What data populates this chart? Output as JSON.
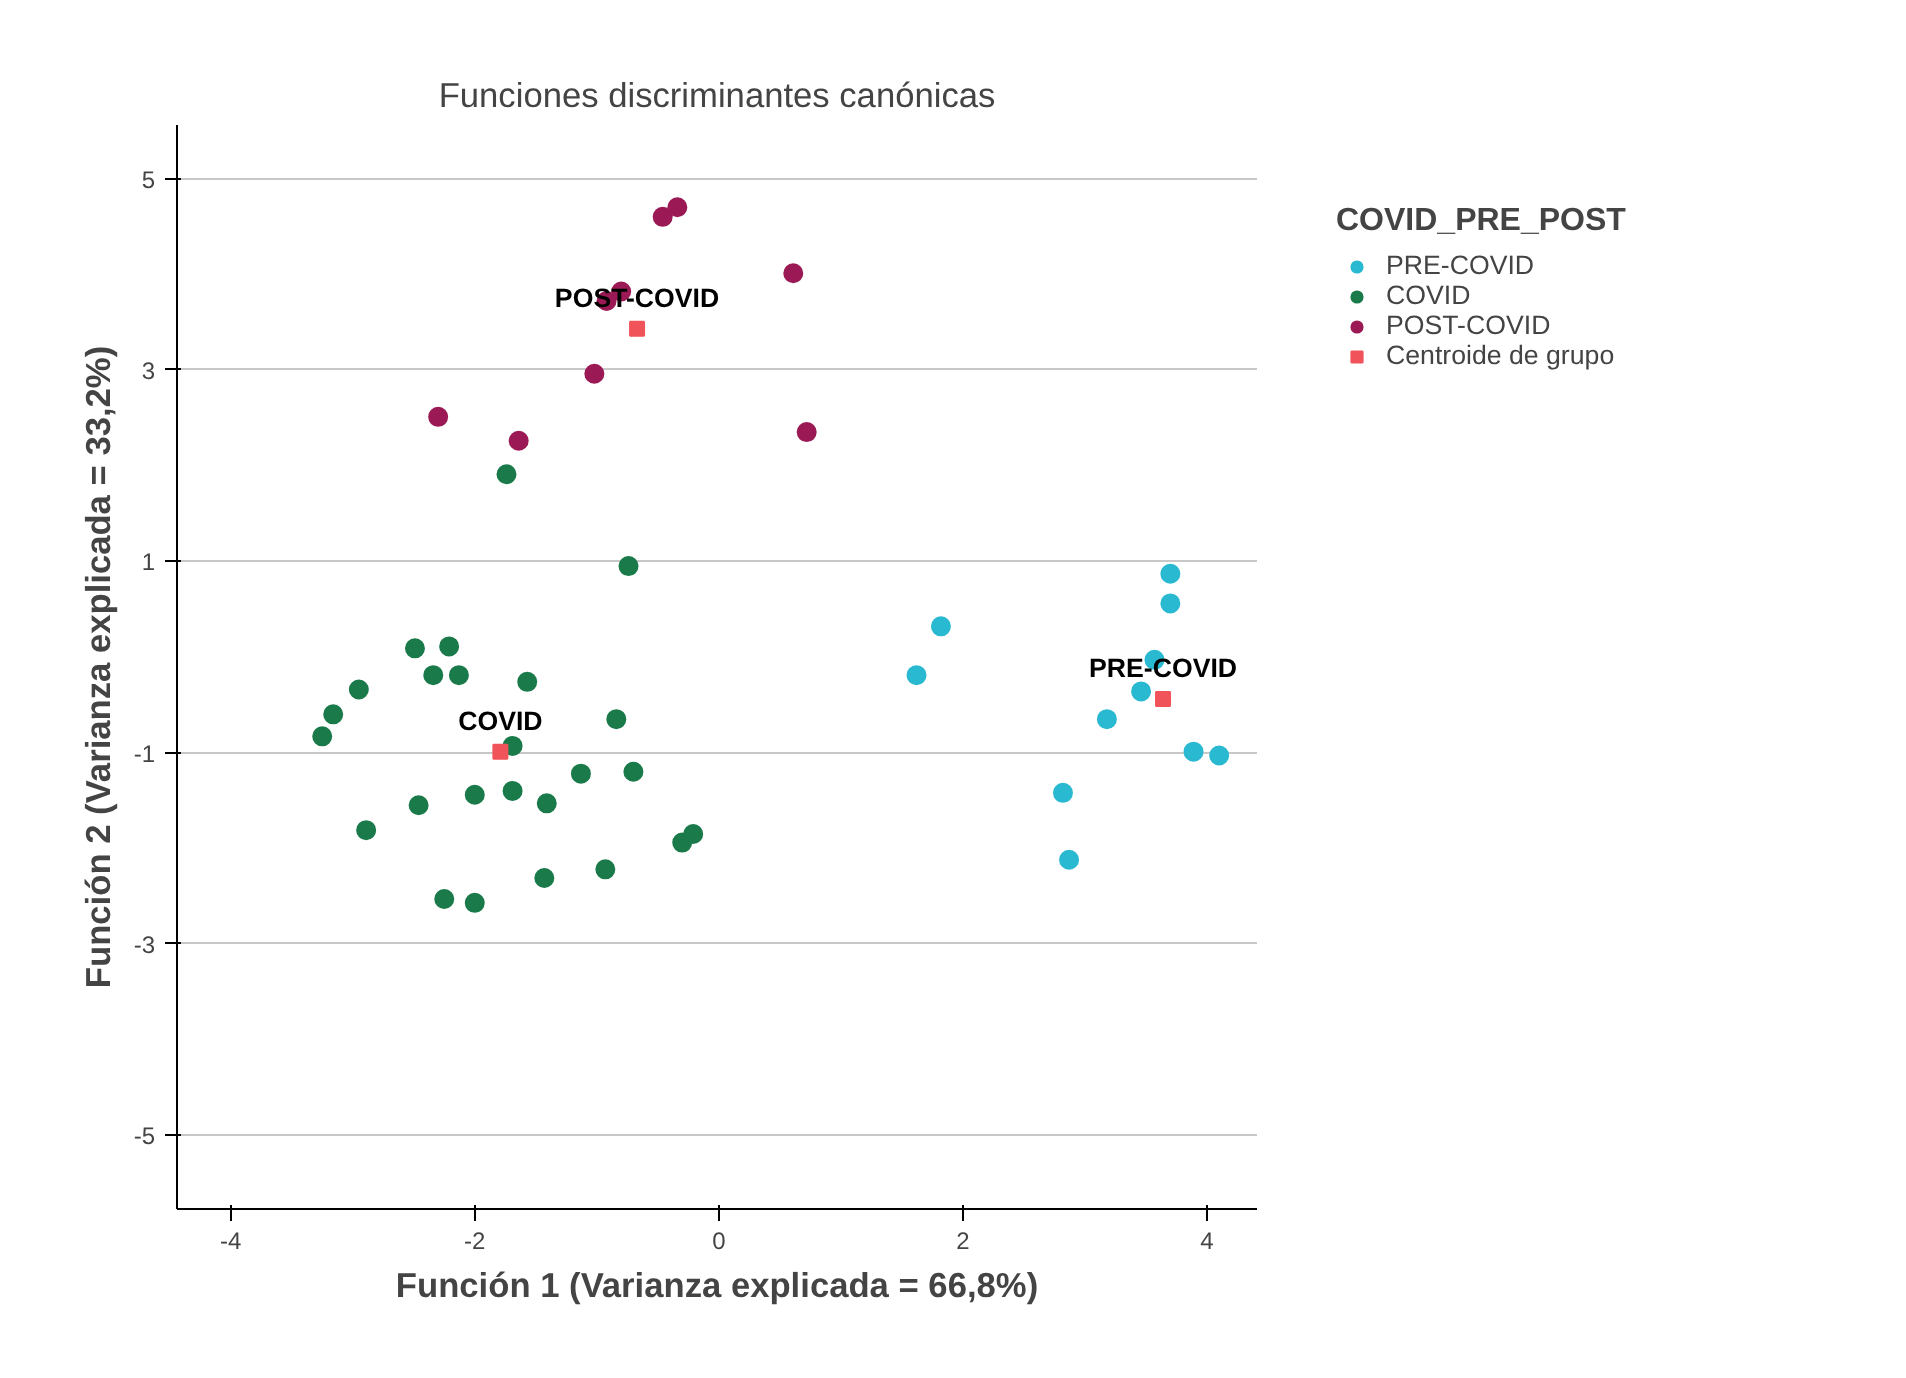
{
  "chart_data": {
    "type": "scatter",
    "title": "Funciones discriminantes canónicas",
    "xlabel": "Función 1 (Varianza explicada = 66,8%)",
    "ylabel": "Función 2 (Varianza explicada = 33,2%)",
    "legend_title": "COVID_PRE_POST",
    "legend": "top right",
    "grid": "y",
    "marker": "circle",
    "xlim": [
      -4.44,
      4.41
    ],
    "ylim": [
      -5.77,
      5.56
    ],
    "xticks": [
      -4,
      -2,
      0,
      2,
      4
    ],
    "yticks": [
      5,
      3,
      1,
      -1,
      -3,
      -5
    ],
    "series": [
      {
        "name": "PRE-COVID",
        "color": "#29b9d1",
        "x": [
          3.7,
          3.7,
          1.82,
          1.62,
          3.57,
          3.46,
          3.18,
          3.89,
          4.1,
          2.82,
          2.87
        ],
        "values": [
          0.87,
          0.56,
          0.32,
          -0.19,
          -0.03,
          -0.36,
          -0.65,
          -0.99,
          -1.03,
          -1.42,
          -2.12
        ]
      },
      {
        "name": "COVID",
        "color": "#1a7a4a",
        "x": [
          -1.74,
          -0.74,
          -2.49,
          -2.21,
          -2.34,
          -2.13,
          -1.57,
          -2.95,
          -3.16,
          -3.25,
          -0.84,
          -1.69,
          -1.13,
          -0.7,
          -2.46,
          -2.0,
          -1.69,
          -1.41,
          -2.89,
          -0.3,
          -0.21,
          -1.43,
          -0.93,
          -2.25,
          -2.0
        ],
        "values": [
          1.91,
          0.95,
          0.09,
          0.11,
          -0.19,
          -0.19,
          -0.26,
          -0.34,
          -0.6,
          -0.83,
          -0.65,
          -0.93,
          -1.22,
          -1.2,
          -1.55,
          -1.44,
          -1.4,
          -1.53,
          -1.81,
          -1.94,
          -1.85,
          -2.31,
          -2.22,
          -2.53,
          -2.57
        ]
      },
      {
        "name": "POST-COVID",
        "color": "#9b1a55",
        "x": [
          -0.46,
          -0.34,
          0.61,
          -0.92,
          -0.8,
          -1.02,
          -2.3,
          -1.64,
          0.72
        ],
        "values": [
          4.6,
          4.7,
          4.01,
          3.72,
          3.82,
          2.96,
          2.51,
          2.26,
          2.35
        ]
      },
      {
        "name": "Centroide de grupo",
        "color": "#f0545a",
        "marker": "square",
        "x": [
          3.64,
          -1.79,
          -0.67
        ],
        "values": [
          -0.44,
          -0.99,
          3.43
        ]
      }
    ],
    "annotations": [
      {
        "text": "PRE-COVID",
        "x": 3.64,
        "y": -0.44
      },
      {
        "text": "COVID",
        "x": -1.79,
        "y": -0.99
      },
      {
        "text": "POST-COVID",
        "x": -0.67,
        "y": 3.43
      }
    ]
  }
}
